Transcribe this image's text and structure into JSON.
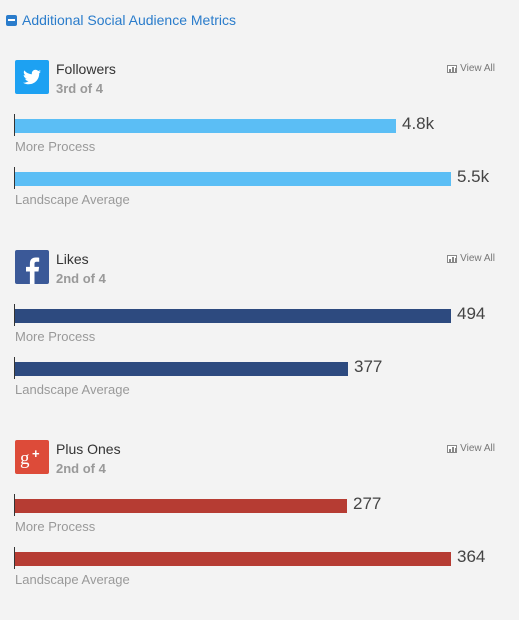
{
  "header": {
    "title": "Additional Social Audience Metrics"
  },
  "common": {
    "view_all": "View All"
  },
  "sections": [
    {
      "key": "twitter",
      "icon": "twitter-icon",
      "brand_color": "#1da1f2",
      "bar_color": "#5bbef5",
      "title": "Followers",
      "rank": "3rd of 4",
      "metrics": [
        {
          "label": "More Process",
          "value": 4800,
          "display": "4.8k"
        },
        {
          "label": "Landscape Average",
          "value": 5500,
          "display": "5.5k"
        }
      ]
    },
    {
      "key": "facebook",
      "icon": "facebook-icon",
      "brand_color": "#3b5998",
      "bar_color": "#2d4a7f",
      "title": "Likes",
      "rank": "2nd of 4",
      "metrics": [
        {
          "label": "More Process",
          "value": 494,
          "display": "494"
        },
        {
          "label": "Landscape Average",
          "value": 377,
          "display": "377"
        }
      ]
    },
    {
      "key": "googleplus",
      "icon": "google-plus-icon",
      "brand_color": "#dd4b39",
      "bar_color": "#b63c33",
      "title": "Plus Ones",
      "rank": "2nd of 4",
      "metrics": [
        {
          "label": "More Process",
          "value": 277,
          "display": "277"
        },
        {
          "label": "Landscape Average",
          "value": 364,
          "display": "364"
        }
      ]
    }
  ]
}
